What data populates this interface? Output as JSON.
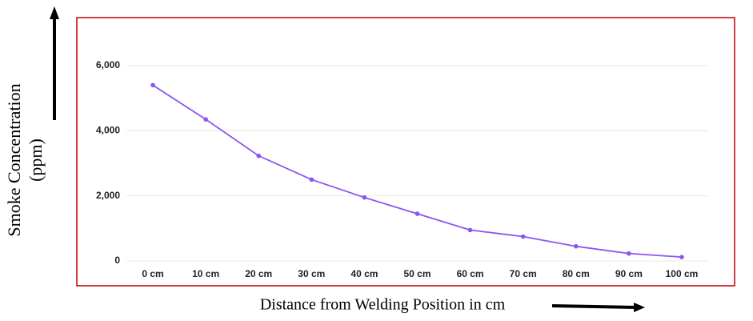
{
  "chart_data": {
    "type": "line",
    "ylabel": "Smoke Concentration (ppm)",
    "xlabel": "Distance from Welding Position in cm",
    "categories": [
      "0 cm",
      "10 cm",
      "20 cm",
      "30 cm",
      "40 cm",
      "50 cm",
      "60 cm",
      "70 cm",
      "80 cm",
      "90 cm",
      "100 cm"
    ],
    "values": [
      5400,
      4350,
      3230,
      2500,
      1950,
      1450,
      950,
      750,
      450,
      230,
      120
    ],
    "color": "#8b55f0",
    "ylim": [
      0,
      6000
    ],
    "yticks": [
      0,
      {
        "value": 2000,
        "label": "2,000"
      },
      {
        "value": 4000,
        "label": "4,000"
      },
      {
        "value": 6000,
        "label": "6,000"
      }
    ],
    "grid": true
  }
}
